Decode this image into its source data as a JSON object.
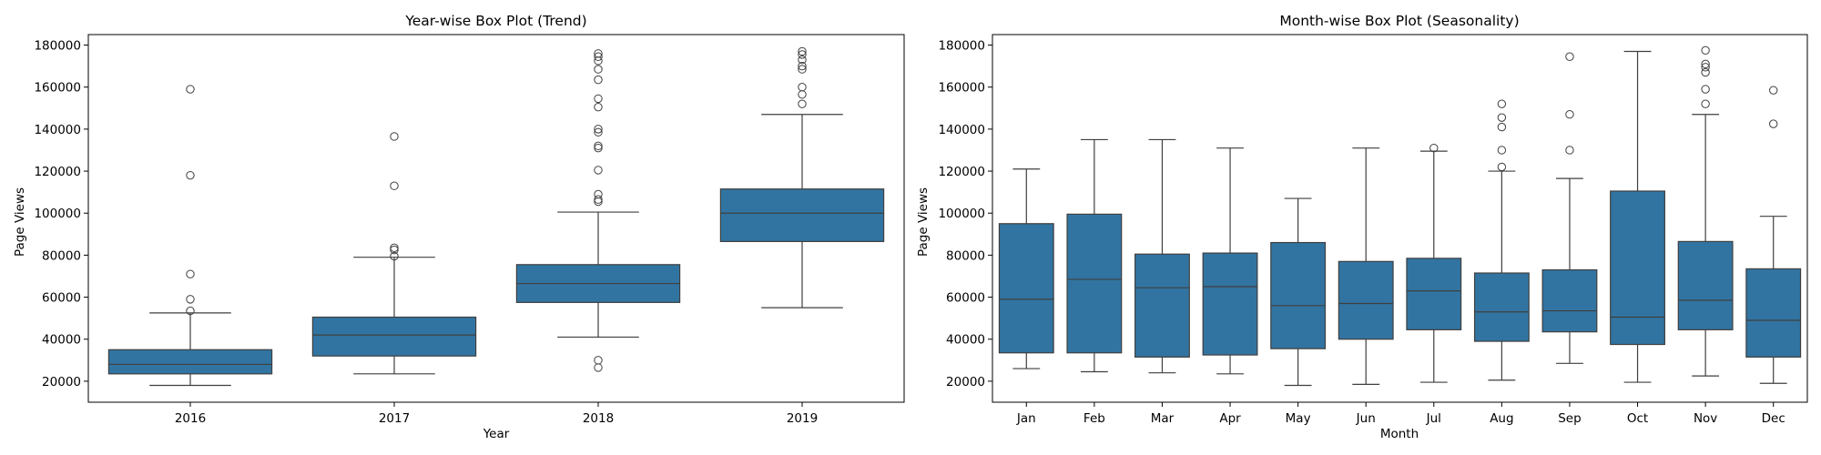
{
  "chart_data": [
    {
      "type": "box",
      "title": "Year-wise Box Plot (Trend)",
      "xlabel": "Year",
      "ylabel": "Page Views",
      "categories": [
        "2016",
        "2017",
        "2018",
        "2019"
      ],
      "ylim": [
        10000,
        185000
      ],
      "yticks": [
        20000,
        40000,
        60000,
        80000,
        100000,
        120000,
        140000,
        160000,
        180000
      ],
      "ytick_labels": [
        "20000",
        "40000",
        "60000",
        "80000",
        "100000",
        "120000",
        "140000",
        "160000",
        "180000"
      ],
      "box_color": "#3274a1",
      "boxes": [
        {
          "category": "2016",
          "whisker_low": 18000,
          "q1": 23500,
          "median": 28000,
          "q3": 35000,
          "whisker_high": 52500,
          "outliers": [
            53500,
            59000,
            71000,
            118000,
            159000
          ]
        },
        {
          "category": "2017",
          "whisker_low": 23500,
          "q1": 32000,
          "median": 42000,
          "q3": 50500,
          "whisker_high": 79000,
          "outliers": [
            79500,
            82500,
            83500,
            113000,
            136500
          ]
        },
        {
          "category": "2018",
          "whisker_low": 41000,
          "q1": 57500,
          "median": 66500,
          "q3": 75500,
          "whisker_high": 100500,
          "outliers": [
            26500,
            30000,
            105500,
            106500,
            109000,
            120500,
            131000,
            132000,
            138500,
            140000,
            150500,
            154500,
            163500,
            168500,
            172500,
            174500,
            176000
          ]
        },
        {
          "category": "2019",
          "whisker_low": 55000,
          "q1": 86500,
          "median": 100000,
          "q3": 111500,
          "whisker_high": 147000,
          "outliers": [
            152000,
            156500,
            160000,
            168500,
            170000,
            173000,
            175500,
            177000
          ]
        }
      ]
    },
    {
      "type": "box",
      "title": "Month-wise Box Plot (Seasonality)",
      "xlabel": "Month",
      "ylabel": "Page Views",
      "categories": [
        "Jan",
        "Feb",
        "Mar",
        "Apr",
        "May",
        "Jun",
        "Jul",
        "Aug",
        "Sep",
        "Oct",
        "Nov",
        "Dec"
      ],
      "ylim": [
        10000,
        185000
      ],
      "yticks": [
        20000,
        40000,
        60000,
        80000,
        100000,
        120000,
        140000,
        160000,
        180000
      ],
      "ytick_labels": [
        "20000",
        "40000",
        "60000",
        "80000",
        "100000",
        "120000",
        "140000",
        "160000",
        "180000"
      ],
      "box_color": "#3274a1",
      "boxes": [
        {
          "category": "Jan",
          "whisker_low": 26000,
          "q1": 33500,
          "median": 59000,
          "q3": 95000,
          "whisker_high": 121000,
          "outliers": []
        },
        {
          "category": "Feb",
          "whisker_low": 24500,
          "q1": 33500,
          "median": 68500,
          "q3": 99500,
          "whisker_high": 135000,
          "outliers": []
        },
        {
          "category": "Mar",
          "whisker_low": 24000,
          "q1": 31500,
          "median": 64500,
          "q3": 80500,
          "whisker_high": 135000,
          "outliers": []
        },
        {
          "category": "Apr",
          "whisker_low": 23500,
          "q1": 32500,
          "median": 65000,
          "q3": 81000,
          "whisker_high": 131000,
          "outliers": []
        },
        {
          "category": "May",
          "whisker_low": 18000,
          "q1": 35500,
          "median": 56000,
          "q3": 86000,
          "whisker_high": 107000,
          "outliers": []
        },
        {
          "category": "Jun",
          "whisker_low": 18500,
          "q1": 40000,
          "median": 57000,
          "q3": 77000,
          "whisker_high": 131000,
          "outliers": []
        },
        {
          "category": "Jul",
          "whisker_low": 19500,
          "q1": 44500,
          "median": 63000,
          "q3": 78500,
          "whisker_high": 129500,
          "outliers": [
            131000
          ]
        },
        {
          "category": "Aug",
          "whisker_low": 20500,
          "q1": 39000,
          "median": 53000,
          "q3": 71500,
          "whisker_high": 120000,
          "outliers": [
            122000,
            130000,
            141000,
            145500,
            152000
          ]
        },
        {
          "category": "Sep",
          "whisker_low": 28500,
          "q1": 43500,
          "median": 53500,
          "q3": 73000,
          "whisker_high": 116500,
          "outliers": [
            130000,
            147000,
            174500
          ]
        },
        {
          "category": "Oct",
          "whisker_low": 19500,
          "q1": 37500,
          "median": 50500,
          "q3": 110500,
          "whisker_high": 177000,
          "outliers": []
        },
        {
          "category": "Nov",
          "whisker_low": 22500,
          "q1": 44500,
          "median": 58500,
          "q3": 86500,
          "whisker_high": 147000,
          "outliers": [
            152000,
            159000,
            167000,
            169500,
            171000,
            177500
          ]
        },
        {
          "category": "Dec",
          "whisker_low": 19000,
          "q1": 31500,
          "median": 49000,
          "q3": 73500,
          "whisker_high": 98500,
          "outliers": [
            142500,
            158500
          ]
        }
      ]
    }
  ]
}
